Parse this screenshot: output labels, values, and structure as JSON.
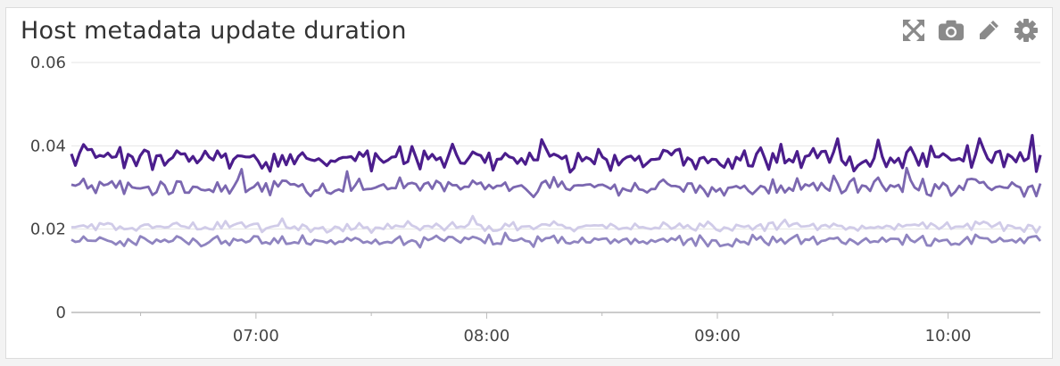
{
  "widget": {
    "title": "Host metadata update duration",
    "icons": [
      "expand-icon",
      "camera-icon",
      "pencil-icon",
      "gear-icon"
    ],
    "icon_color": "#8a8a8a"
  },
  "chart_data": {
    "type": "line",
    "title": "Host metadata update duration",
    "xlabel": "",
    "ylabel": "",
    "x_range": [
      "06:12",
      "10:24"
    ],
    "x_ticks": [
      "07:00",
      "08:00",
      "09:00",
      "10:00"
    ],
    "y_ticks": [
      "0",
      "0.02",
      "0.04",
      "0.06"
    ],
    "y_tick_values": [
      0,
      0.02,
      0.04,
      0.06
    ],
    "ylim": [
      0,
      0.06
    ],
    "grid": true,
    "legend": "none",
    "sample_points": 240,
    "series": [
      {
        "color": "#4b1d8c",
        "base": 0.037,
        "amp": 0.0035
      },
      {
        "color": "#7b67b0",
        "base": 0.03,
        "amp": 0.0025
      },
      {
        "color": "#d0cbe8",
        "base": 0.0205,
        "amp": 0.0014
      },
      {
        "color": "#8f84c0",
        "base": 0.0172,
        "amp": 0.0016
      }
    ]
  }
}
